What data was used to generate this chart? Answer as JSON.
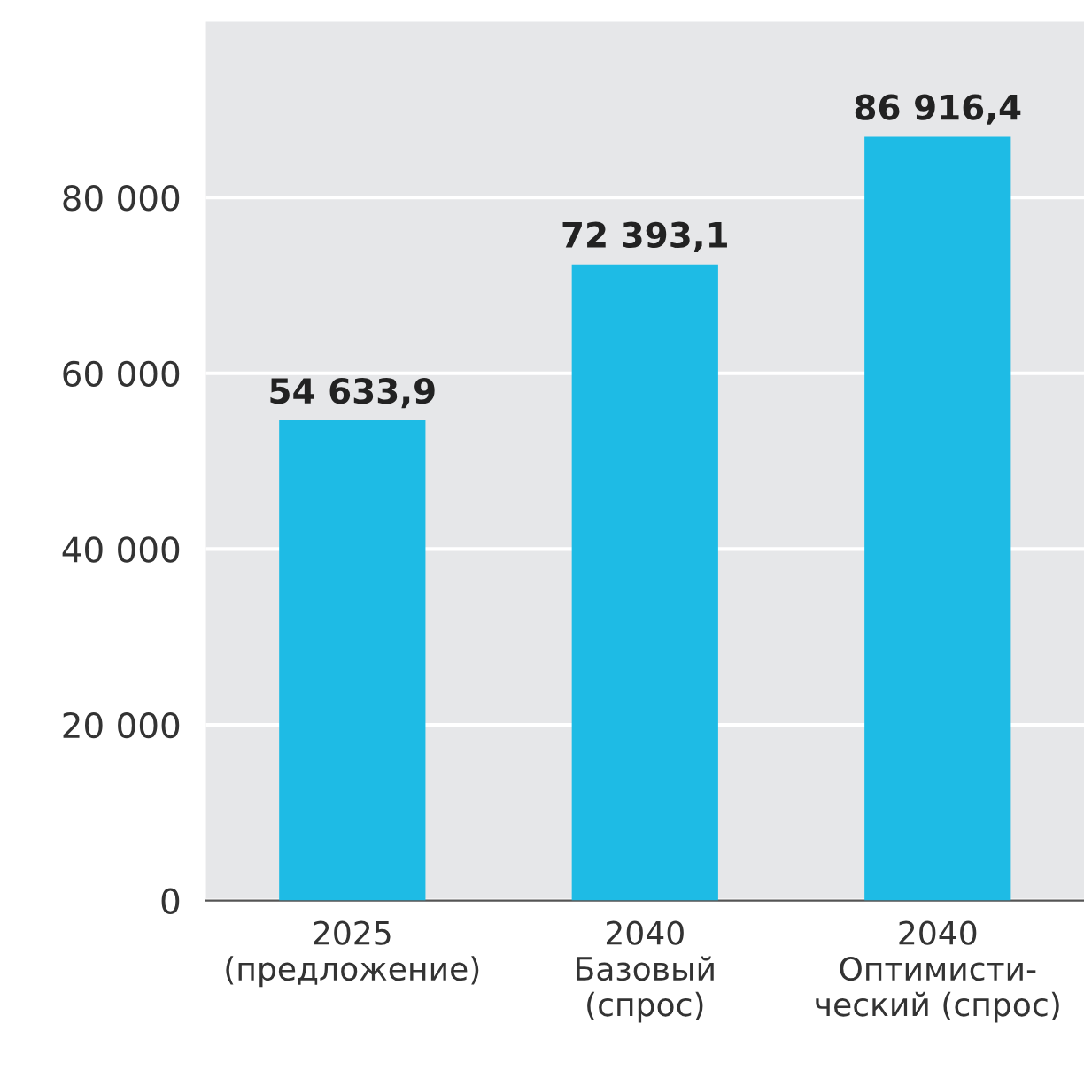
{
  "chart_data": {
    "type": "bar",
    "categories": [
      "2025\n(предложение)",
      "2040\nБазовый\n(спрос)",
      "2040\nОптимисти-\nческий (спрос)"
    ],
    "values": [
      54633.9,
      72393.1,
      86916.4
    ],
    "value_labels": [
      "54 633,9",
      "72 393,1",
      "86 916,4"
    ],
    "color": "#1ebbe5",
    "ylim": [
      0,
      100000
    ],
    "yticks": [
      {
        "value": 0,
        "label": "0"
      },
      {
        "value": 20000,
        "label": "20 000"
      },
      {
        "value": 40000,
        "label": "40 000"
      },
      {
        "value": 60000,
        "label": "60 000"
      },
      {
        "value": 80000,
        "label": "80 000"
      }
    ],
    "grid": "y"
  }
}
